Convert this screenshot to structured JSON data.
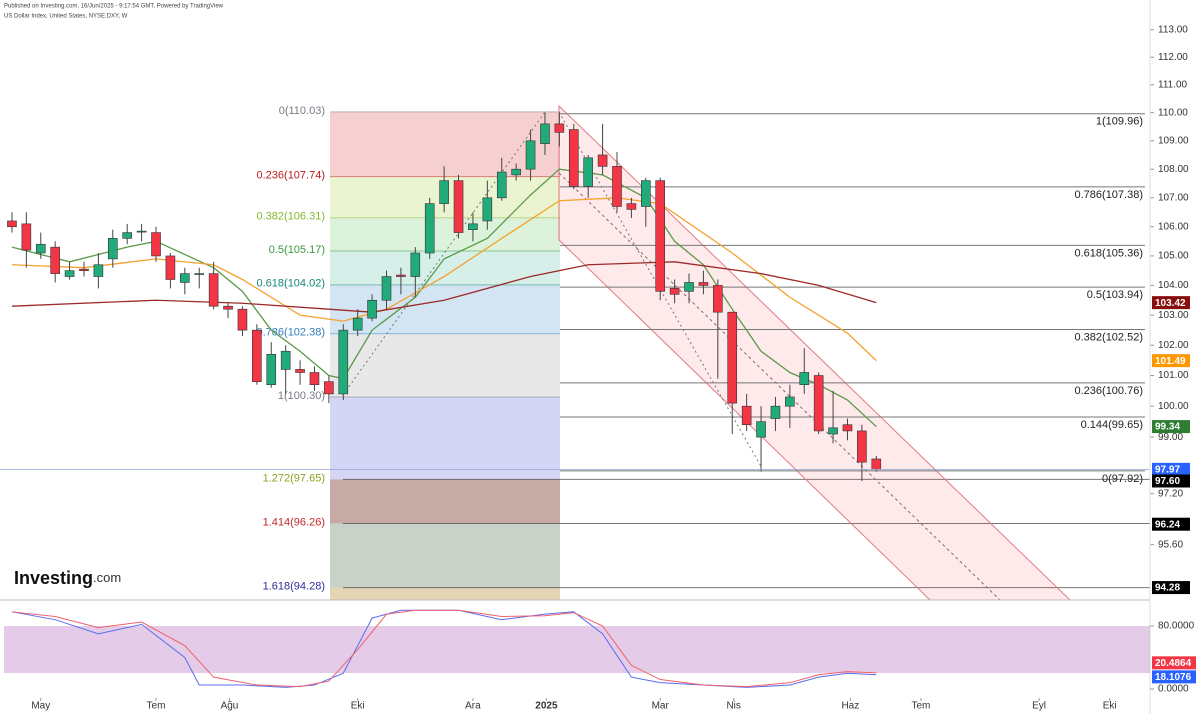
{
  "header": {
    "line1": "Published on Investing.com, 16/Jun/2025 - 9:17:54 GMT, Powered by TradingView",
    "line2": "US Dollar Index, United States, NYSE:DXY, W"
  },
  "logo": {
    "main": "Investing",
    "suffix": ".com"
  },
  "chart_data": [
    {
      "type": "candlestick",
      "xlim": [
        -0.83,
        79
      ],
      "ylim": [
        93.9,
        114.1
      ],
      "log_scale": true,
      "xticks": [
        {
          "value": 2.0,
          "label": "May"
        },
        {
          "value": 10.0,
          "label": "Tem"
        },
        {
          "value": 15.1,
          "label": "Ağu"
        },
        {
          "value": 24.0,
          "label": "Eki"
        },
        {
          "value": 32.0,
          "label": "Ara"
        },
        {
          "value": 37.1,
          "label": "2025"
        },
        {
          "value": 45.0,
          "label": "Mar"
        },
        {
          "value": 50.1,
          "label": "Nis"
        },
        {
          "value": 58.2,
          "label": "Haz"
        },
        {
          "value": 63.1,
          "label": "Tem"
        },
        {
          "value": 71.3,
          "label": "Eyl"
        },
        {
          "value": 76.2,
          "label": "Eki"
        }
      ],
      "yticks": [
        {
          "value": 113,
          "label": "113.00"
        },
        {
          "value": 112,
          "label": "112.00"
        },
        {
          "value": 111,
          "label": "111.00"
        },
        {
          "value": 110,
          "label": "110.00"
        },
        {
          "value": 109,
          "label": "109.00"
        },
        {
          "value": 108,
          "label": "108.00"
        },
        {
          "value": 107,
          "label": "107.00"
        },
        {
          "value": 106,
          "label": "106.00"
        },
        {
          "value": 105,
          "label": "105.00"
        },
        {
          "value": 104,
          "label": "104.00"
        },
        {
          "value": 103,
          "label": "103.00"
        },
        {
          "value": 102,
          "label": "102.00"
        },
        {
          "value": 101,
          "label": "101.00"
        },
        {
          "value": 100,
          "label": "100.00"
        },
        {
          "value": 99,
          "label": "99.00"
        },
        {
          "value": 97.2,
          "label": "97.20"
        },
        {
          "value": 95.6,
          "label": "95.60"
        }
      ],
      "up_color": "#22ab7a",
      "down_color": "#f23645",
      "open": [
        106.2,
        106.1,
        105.1,
        105.3,
        104.3,
        104.55,
        104.3,
        104.9,
        105.6,
        105.85,
        105.8,
        105.0,
        104.1,
        104.4,
        104.4,
        103.3,
        103.2,
        102.5,
        100.7,
        101.2,
        101.2,
        101.1,
        100.8,
        100.4,
        102.5,
        102.9,
        103.5,
        104.35,
        104.3,
        105.1,
        106.8,
        107.6,
        105.9,
        106.2,
        107.0,
        107.8,
        108.0,
        108.9,
        109.6,
        109.4,
        107.4,
        108.5,
        108.1,
        106.8,
        106.7,
        107.6,
        103.9,
        103.8,
        104.1,
        104.0,
        103.1,
        100.0,
        99.0,
        99.6,
        100.0,
        100.7,
        101.0,
        99.1,
        99.4,
        99.2,
        98.3
      ],
      "high": [
        106.5,
        106.5,
        105.8,
        105.5,
        104.8,
        104.8,
        105.1,
        105.9,
        106.1,
        106.1,
        106.0,
        105.1,
        104.6,
        104.6,
        104.8,
        103.4,
        103.3,
        102.7,
        102.1,
        102.0,
        101.5,
        101.3,
        101.0,
        102.7,
        103.2,
        103.7,
        104.5,
        104.6,
        105.3,
        107.0,
        108.1,
        107.8,
        106.5,
        107.6,
        108.4,
        108.2,
        109.4,
        110.0,
        110.0,
        109.6,
        108.5,
        109.6,
        108.6,
        107.0,
        107.7,
        107.7,
        104.2,
        104.4,
        104.5,
        104.2,
        103.1,
        100.4,
        100.0,
        100.3,
        100.7,
        101.9,
        101.1,
        100.5,
        99.6,
        99.4,
        98.4
      ],
      "low": [
        105.8,
        104.6,
        104.9,
        104.1,
        104.2,
        104.3,
        103.9,
        104.6,
        105.4,
        105.5,
        104.8,
        103.9,
        103.7,
        103.9,
        103.2,
        102.9,
        102.3,
        100.7,
        100.6,
        100.4,
        100.7,
        100.5,
        100.1,
        100.2,
        102.3,
        102.8,
        103.2,
        103.7,
        103.6,
        104.9,
        106.5,
        105.6,
        105.5,
        105.9,
        106.9,
        107.6,
        107.6,
        108.5,
        108.8,
        107.3,
        107.0,
        107.8,
        106.5,
        106.3,
        106.0,
        103.5,
        103.4,
        103.4,
        103.7,
        100.9,
        99.1,
        99.2,
        97.9,
        99.2,
        99.3,
        100.4,
        99.1,
        98.8,
        98.9,
        97.6,
        97.9
      ],
      "close": [
        106.0,
        105.2,
        105.4,
        104.4,
        104.5,
        104.5,
        104.7,
        105.6,
        105.8,
        105.85,
        105.0,
        104.2,
        104.4,
        104.4,
        103.3,
        103.2,
        102.5,
        100.8,
        101.7,
        101.8,
        101.1,
        100.7,
        100.4,
        102.5,
        102.9,
        103.5,
        104.3,
        104.3,
        105.1,
        106.8,
        107.6,
        105.8,
        106.1,
        107.0,
        107.9,
        108.0,
        109.0,
        109.6,
        109.3,
        107.4,
        108.4,
        108.1,
        106.7,
        106.6,
        107.6,
        103.8,
        103.7,
        104.1,
        104.0,
        103.1,
        100.1,
        99.4,
        99.5,
        100.0,
        100.3,
        101.1,
        99.2,
        99.3,
        99.2,
        98.2,
        97.97
      ],
      "moving_averages": [
        {
          "color": "#5b9a4a",
          "x": [
            0,
            4,
            8,
            10,
            14,
            16,
            18,
            20,
            22,
            23,
            25,
            28,
            30,
            33,
            36,
            38,
            41,
            44,
            46,
            48,
            50,
            52,
            54,
            56,
            58,
            60
          ],
          "values": [
            105.3,
            104.8,
            105.3,
            105.5,
            104.6,
            103.8,
            102.5,
            101.8,
            101.0,
            100.9,
            102.5,
            103.6,
            104.9,
            105.6,
            107.1,
            108.0,
            107.8,
            107.0,
            105.5,
            104.7,
            103.2,
            101.8,
            101.1,
            100.7,
            100.2,
            99.34
          ]
        },
        {
          "color": "#f4a12e",
          "x": [
            0,
            5,
            10,
            14,
            16,
            20,
            23,
            26,
            30,
            34,
            38,
            42,
            45,
            50,
            54,
            58,
            60
          ],
          "values": [
            104.7,
            104.6,
            104.9,
            104.7,
            104.2,
            103.0,
            102.8,
            103.2,
            104.3,
            105.6,
            106.9,
            107.0,
            106.8,
            105.1,
            103.6,
            102.4,
            101.49
          ]
        },
        {
          "color": "#9c2a2a",
          "x": [
            0,
            10,
            16,
            22,
            25,
            30,
            36,
            40,
            46,
            52,
            56,
            60
          ],
          "values": [
            103.3,
            103.5,
            103.4,
            103.2,
            103.1,
            103.5,
            104.3,
            104.7,
            104.8,
            104.4,
            104.0,
            103.42
          ]
        }
      ],
      "fib_left": [
        {
          "label": "0(110.03)",
          "price": 110.03,
          "color": "#787b86",
          "band_color": "#f6d0d0"
        },
        {
          "label": "0.236(107.74)",
          "price": 107.74,
          "color": "#b71c1c",
          "band_color": "#eaf4d0"
        },
        {
          "label": "0.382(106.31)",
          "price": 106.31,
          "color": "#8bb52e",
          "band_color": "#dcf2da"
        },
        {
          "label": "0.5(105.17)",
          "price": 105.17,
          "color": "#3c9a3c",
          "band_color": "#d6efe8"
        },
        {
          "label": "0.618(104.02)",
          "price": 104.02,
          "color": "#138a7a",
          "band_color": "#d3e5f2"
        },
        {
          "label": "0.786(102.38)",
          "price": 102.38,
          "color": "#2f7fbf",
          "band_color": "#e8e8e8"
        },
        {
          "label": "1(100.30)",
          "price": 100.3,
          "color": "#787b86",
          "band_color": "#d5d5f5"
        },
        {
          "label": "1.272(97.65)",
          "price": 97.65,
          "color": "#8fa020",
          "band_color": "#c6aaa5"
        },
        {
          "label": "1.414(96.26)",
          "price": 96.26,
          "color": "#c62828",
          "band_color": "#c8d2c9"
        },
        {
          "label": "1.618(94.28)",
          "price": 94.28,
          "color": "#2e2e9a",
          "band_color": "#e6d5b4"
        }
      ],
      "fib_right": [
        {
          "label": "1(109.96)",
          "price": 109.96
        },
        {
          "label": "0.786(107.38)",
          "price": 107.38
        },
        {
          "label": "0.618(105.36)",
          "price": 105.36
        },
        {
          "label": "0.5(103.94)",
          "price": 103.94
        },
        {
          "label": "0.382(102.52)",
          "price": 102.52
        },
        {
          "label": "0.236(100.76)",
          "price": 100.76
        },
        {
          "label": "0.144(99.65)",
          "price": 99.65
        },
        {
          "label": "0(97.92)",
          "price": 97.92
        }
      ],
      "price_tags": [
        {
          "value": 103.42,
          "label": "103.42",
          "color": "#880e0e"
        },
        {
          "value": 101.49,
          "label": "101.49",
          "color": "#ff9800"
        },
        {
          "value": 99.34,
          "label": "99.34",
          "color": "#2e7d32"
        },
        {
          "value": 97.97,
          "label": "97.97",
          "color": "#2962ff"
        },
        {
          "value": 97.6,
          "label": "97.60",
          "color": "#000000"
        },
        {
          "value": 96.24,
          "label": "96.24",
          "color": "#000000"
        },
        {
          "value": 94.28,
          "label": "94.28",
          "color": "#000000"
        }
      ]
    },
    {
      "type": "line",
      "xlim": [
        -0.83,
        79
      ],
      "ylim": [
        -14,
        113
      ],
      "yticks": [
        {
          "value": 80,
          "label": "80.0000"
        },
        {
          "value": 0,
          "label": "0.0000"
        }
      ],
      "series": [
        {
          "color": "#5a6cf0",
          "x": [
            0,
            3,
            6,
            9,
            12,
            13,
            16,
            19,
            21,
            23,
            25,
            27,
            31,
            34,
            37,
            39,
            41,
            43,
            45,
            48,
            51,
            54,
            56,
            58,
            60
          ],
          "values": [
            98,
            88,
            70,
            82,
            40,
            5,
            5,
            2,
            5,
            20,
            90,
            100,
            100,
            88,
            95,
            98,
            70,
            15,
            8,
            5,
            2,
            5,
            15,
            20,
            18.1076
          ]
        },
        {
          "color": "#f0606a",
          "x": [
            0,
            3,
            6,
            9,
            12,
            14,
            17,
            20,
            22,
            24,
            26,
            28,
            31,
            34,
            37,
            39,
            41,
            43,
            45,
            48,
            51,
            54,
            56,
            58,
            60
          ],
          "values": [
            98,
            92,
            78,
            85,
            55,
            15,
            5,
            3,
            10,
            50,
            95,
            100,
            100,
            92,
            93,
            97,
            80,
            30,
            12,
            5,
            3,
            8,
            18,
            22,
            20.4864
          ]
        }
      ],
      "tags": [
        {
          "value": 20.4864,
          "label": "20.4864",
          "color": "#f23645"
        },
        {
          "value": 18.1076,
          "label": "18.1076",
          "color": "#2962ff"
        }
      ]
    }
  ]
}
